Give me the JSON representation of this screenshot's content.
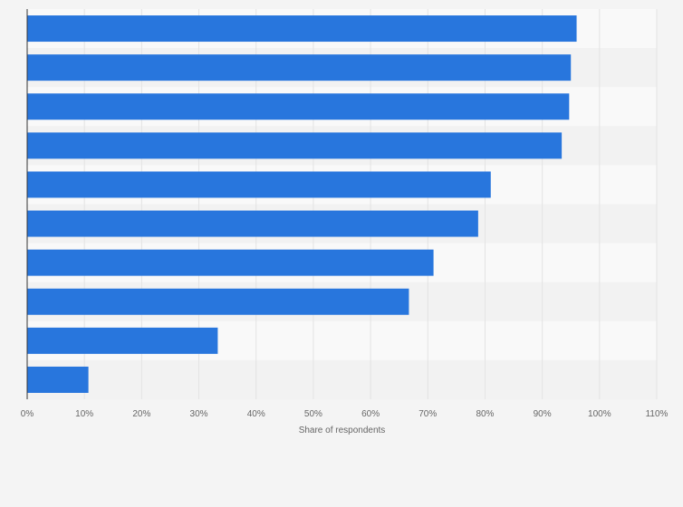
{
  "colors": {
    "bar": "#2876dd",
    "band_light": "#f9f9f9",
    "band_dark": "#f2f2f2",
    "grid": "#e3e3e3",
    "axis": "#333333",
    "page_bg": "#f4f4f4"
  },
  "chart_data": {
    "type": "bar",
    "orientation": "horizontal",
    "categories": [
      "",
      "",
      "",
      "",
      "",
      "",
      "",
      "",
      "",
      ""
    ],
    "values": [
      96,
      95,
      94.7,
      93.4,
      81,
      78.8,
      71,
      66.7,
      33.3,
      10.7
    ],
    "xlabel": "Share of respondents",
    "ylabel": "",
    "xlim": [
      0,
      110
    ],
    "x_ticks": [
      0,
      10,
      20,
      30,
      40,
      50,
      60,
      70,
      80,
      90,
      100,
      110
    ],
    "x_tick_labels": [
      "0%",
      "10%",
      "20%",
      "30%",
      "40%",
      "50%",
      "60%",
      "70%",
      "80%",
      "90%",
      "100%",
      "110%"
    ],
    "grid": true,
    "legend": "none"
  }
}
